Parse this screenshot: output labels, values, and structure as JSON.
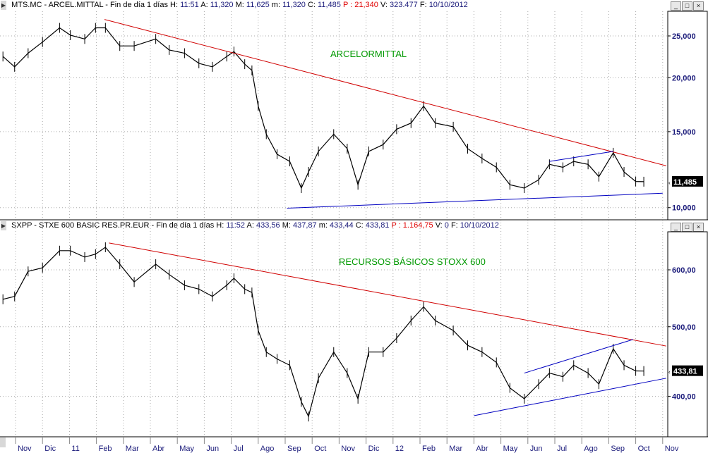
{
  "panels": [
    {
      "header": {
        "symbol": "MTS.MC - ARCEL.MITTAL - Fin de día 1 días",
        "h_label": "H:",
        "h": "11:51",
        "a_label": "A:",
        "a": "11,320",
        "m_label": "M:",
        "m": "11,625",
        "min_label": "m:",
        "min": "11,320",
        "c_label": "C:",
        "c": "11,485",
        "p": "P : 21,340",
        "vol_label": "V:",
        "vol": "323.477",
        "f_label": "F:",
        "f": "10/10/2012"
      },
      "annotation": "ARCELORMITTAL",
      "last_value_label": "11,485"
    },
    {
      "header": {
        "symbol": "SXPP - STXE 600 BASIC RES.PR.EUR - Fin de día 1 días",
        "h_label": "H:",
        "h": "11:52",
        "a_label": "A:",
        "a": "433,56",
        "m_label": "M:",
        "m": "437,87",
        "min_label": "m:",
        "min": "433,44",
        "c_label": "C:",
        "c": "433,81",
        "p": "P : 1.164,75",
        "vol_label": "V:",
        "vol": "0",
        "f_label": "F:",
        "f": "10/10/2012"
      },
      "annotation": "RECURSOS BÁSICOS STOXX 600",
      "last_value_label": "433,81"
    }
  ],
  "colors": {
    "price": "#000000",
    "resistance": "#d00000",
    "support": "#0000c0",
    "annotation": "#009900",
    "axis_text": "#1a1a7a"
  },
  "chart_data": [
    {
      "type": "line",
      "title": "MTS.MC - ARCEL.MITTAL",
      "scale": "log",
      "ylim": [
        9500,
        28000
      ],
      "yticks": [
        {
          "value": 25000,
          "label": "25,000"
        },
        {
          "value": 20000,
          "label": "20,000"
        },
        {
          "value": 15000,
          "label": "15,000"
        },
        {
          "value": 10000,
          "label": "10,000"
        }
      ],
      "last_value": 11485,
      "series": [
        {
          "name": "close",
          "points": [
            [
              "2010-10-17",
              22400
            ],
            [
              "2010-10-30",
              21200
            ],
            [
              "2010-11-15",
              22800
            ],
            [
              "2010-12-01",
              24200
            ],
            [
              "2010-12-20",
              26100
            ],
            [
              "2011-01-02",
              25100
            ],
            [
              "2011-01-18",
              24600
            ],
            [
              "2011-01-30",
              26100
            ],
            [
              "2011-02-11",
              26100
            ],
            [
              "2011-02-27",
              23700
            ],
            [
              "2011-03-13",
              23700
            ],
            [
              "2011-04-07",
              24600
            ],
            [
              "2011-04-22",
              23200
            ],
            [
              "2011-05-09",
              22800
            ],
            [
              "2011-05-25",
              21600
            ],
            [
              "2011-06-10",
              21200
            ],
            [
              "2011-06-26",
              22400
            ],
            [
              "2011-07-04",
              23000
            ],
            [
              "2011-07-16",
              21500
            ],
            [
              "2011-07-24",
              20800
            ],
            [
              "2011-08-01",
              17200
            ],
            [
              "2011-08-10",
              14800
            ],
            [
              "2011-08-22",
              13300
            ],
            [
              "2011-09-06",
              12800
            ],
            [
              "2011-09-19",
              11100
            ],
            [
              "2011-09-27",
              12100
            ],
            [
              "2011-10-08",
              13500
            ],
            [
              "2011-10-25",
              14800
            ],
            [
              "2011-11-10",
              13700
            ],
            [
              "2011-11-22",
              11300
            ],
            [
              "2011-12-04",
              13500
            ],
            [
              "2011-12-20",
              14000
            ],
            [
              "2012-01-05",
              15200
            ],
            [
              "2012-01-21",
              15700
            ],
            [
              "2012-02-05",
              17200
            ],
            [
              "2012-02-18",
              15700
            ],
            [
              "2012-03-08",
              15400
            ],
            [
              "2012-03-24",
              13700
            ],
            [
              "2012-04-10",
              13000
            ],
            [
              "2012-04-26",
              12400
            ],
            [
              "2012-05-11",
              11300
            ],
            [
              "2012-05-27",
              11100
            ],
            [
              "2012-06-13",
              11600
            ],
            [
              "2012-06-25",
              12600
            ],
            [
              "2012-07-10",
              12400
            ],
            [
              "2012-07-22",
              12800
            ],
            [
              "2012-08-08",
              12600
            ],
            [
              "2012-08-20",
              11800
            ],
            [
              "2012-09-06",
              13400
            ],
            [
              "2012-09-18",
              12100
            ],
            [
              "2012-10-01",
              11500
            ],
            [
              "2012-10-10",
              11485
            ]
          ]
        }
      ],
      "trendlines": [
        {
          "name": "resistance",
          "color": "#d00000",
          "from": [
            "2011-02-10",
            27300
          ],
          "to": [
            "2012-11-05",
            12500
          ]
        },
        {
          "name": "support",
          "color": "#0000c0",
          "from": [
            "2011-09-03",
            9970
          ],
          "to": [
            "2012-11-01",
            10800
          ]
        },
        {
          "name": "channel-top",
          "color": "#0000c0",
          "from": [
            "2012-06-25",
            12800
          ],
          "to": [
            "2012-09-06",
            13500
          ]
        }
      ]
    },
    {
      "type": "line",
      "title": "SXPP - STXE 600 BASIC RES.PR.EUR",
      "scale": "log",
      "ylim": [
        340,
        680
      ],
      "yticks": [
        {
          "value": 600,
          "label": "600,00"
        },
        {
          "value": 500,
          "label": "500,00"
        },
        {
          "value": 400,
          "label": "400,00"
        }
      ],
      "last_value": 433.81,
      "series": [
        {
          "name": "close",
          "points": [
            [
              "2010-10-17",
              546
            ],
            [
              "2010-10-30",
              551
            ],
            [
              "2010-11-15",
              597
            ],
            [
              "2010-12-01",
              604
            ],
            [
              "2010-12-20",
              638
            ],
            [
              "2011-01-02",
              638
            ],
            [
              "2011-01-18",
              625
            ],
            [
              "2011-01-30",
              631
            ],
            [
              "2011-02-11",
              645
            ],
            [
              "2011-02-27",
              611
            ],
            [
              "2011-03-13",
              577
            ],
            [
              "2011-04-07",
              611
            ],
            [
              "2011-04-22",
              591
            ],
            [
              "2011-05-09",
              571
            ],
            [
              "2011-05-25",
              564
            ],
            [
              "2011-06-10",
              551
            ],
            [
              "2011-06-26",
              571
            ],
            [
              "2011-07-04",
              584
            ],
            [
              "2011-07-16",
              564
            ],
            [
              "2011-07-24",
              558
            ],
            [
              "2011-08-01",
              494
            ],
            [
              "2011-08-10",
              461
            ],
            [
              "2011-08-22",
              451
            ],
            [
              "2011-09-06",
              442
            ],
            [
              "2011-09-19",
              393
            ],
            [
              "2011-09-27",
              375
            ],
            [
              "2011-10-08",
              424
            ],
            [
              "2011-10-25",
              461
            ],
            [
              "2011-11-10",
              431
            ],
            [
              "2011-11-22",
              397
            ],
            [
              "2011-12-04",
              461
            ],
            [
              "2011-12-20",
              461
            ],
            [
              "2012-01-05",
              482
            ],
            [
              "2012-01-21",
              510
            ],
            [
              "2012-02-05",
              533
            ],
            [
              "2012-02-18",
              510
            ],
            [
              "2012-03-08",
              494
            ],
            [
              "2012-03-24",
              471
            ],
            [
              "2012-04-10",
              461
            ],
            [
              "2012-04-26",
              446
            ],
            [
              "2012-05-11",
              411
            ],
            [
              "2012-05-27",
              397
            ],
            [
              "2012-06-13",
              416
            ],
            [
              "2012-06-25",
              431
            ],
            [
              "2012-07-10",
              426
            ],
            [
              "2012-07-22",
              442
            ],
            [
              "2012-08-08",
              431
            ],
            [
              "2012-08-20",
              416
            ],
            [
              "2012-09-06",
              466
            ],
            [
              "2012-09-18",
              442
            ],
            [
              "2012-10-01",
              434
            ],
            [
              "2012-10-10",
              433.81
            ]
          ]
        }
      ],
      "trendlines": [
        {
          "name": "resistance",
          "color": "#d00000",
          "from": [
            "2011-02-15",
            654
          ],
          "to": [
            "2012-11-05",
            470
          ]
        },
        {
          "name": "support",
          "color": "#0000c0",
          "from": [
            "2012-04-01",
            376
          ],
          "to": [
            "2012-11-05",
            424
          ]
        },
        {
          "name": "channel-top",
          "color": "#0000c0",
          "from": [
            "2012-05-27",
            431
          ],
          "to": [
            "2012-09-28",
            480
          ]
        }
      ]
    }
  ],
  "x_axis": {
    "start": "2010-11-01",
    "labels": [
      "Nov",
      "Dic",
      "11",
      "Feb",
      "Mar",
      "Abr",
      "May",
      "Jun",
      "Jul",
      "Ago",
      "Sep",
      "Oct",
      "Nov",
      "Dic",
      "12",
      "Feb",
      "Mar",
      "Abr",
      "May",
      "Jun",
      "Jul",
      "Ago",
      "Sep",
      "Oct",
      "Nov"
    ]
  },
  "window_buttons": {
    "minimize": "_",
    "maximize": "□",
    "close": "×"
  }
}
